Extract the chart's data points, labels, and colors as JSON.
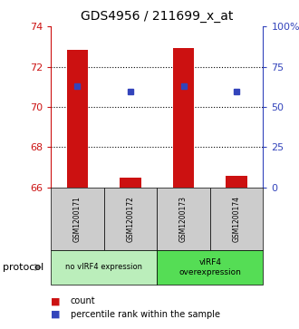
{
  "title": "GDS4956 / 211699_x_at",
  "samples": [
    "GSM1200171",
    "GSM1200172",
    "GSM1200173",
    "GSM1200174"
  ],
  "bar_values": [
    72.85,
    66.5,
    72.9,
    66.6
  ],
  "bar_base": 66.0,
  "percentile_values": [
    71.05,
    70.75,
    71.05,
    70.75
  ],
  "ylim": [
    66,
    74
  ],
  "yticks_left": [
    66,
    68,
    70,
    72,
    74
  ],
  "yticks_right": [
    0,
    25,
    50,
    75,
    100
  ],
  "ytick_right_labels": [
    "0",
    "25",
    "50",
    "75",
    "100%"
  ],
  "dotted_lines": [
    68,
    70,
    72
  ],
  "bar_color": "#cc1111",
  "blue_color": "#3344bb",
  "group1_label": "no vIRF4 expression",
  "group2_label": "vIRF4\noverexpression",
  "group1_color": "#bbeebb",
  "group2_color": "#55dd55",
  "sample_bg_color": "#cccccc",
  "protocol_label": "protocol",
  "legend_count": "count",
  "legend_pct": "percentile rank within the sample",
  "bar_width": 0.4,
  "fig_width": 3.3,
  "fig_height": 3.63
}
